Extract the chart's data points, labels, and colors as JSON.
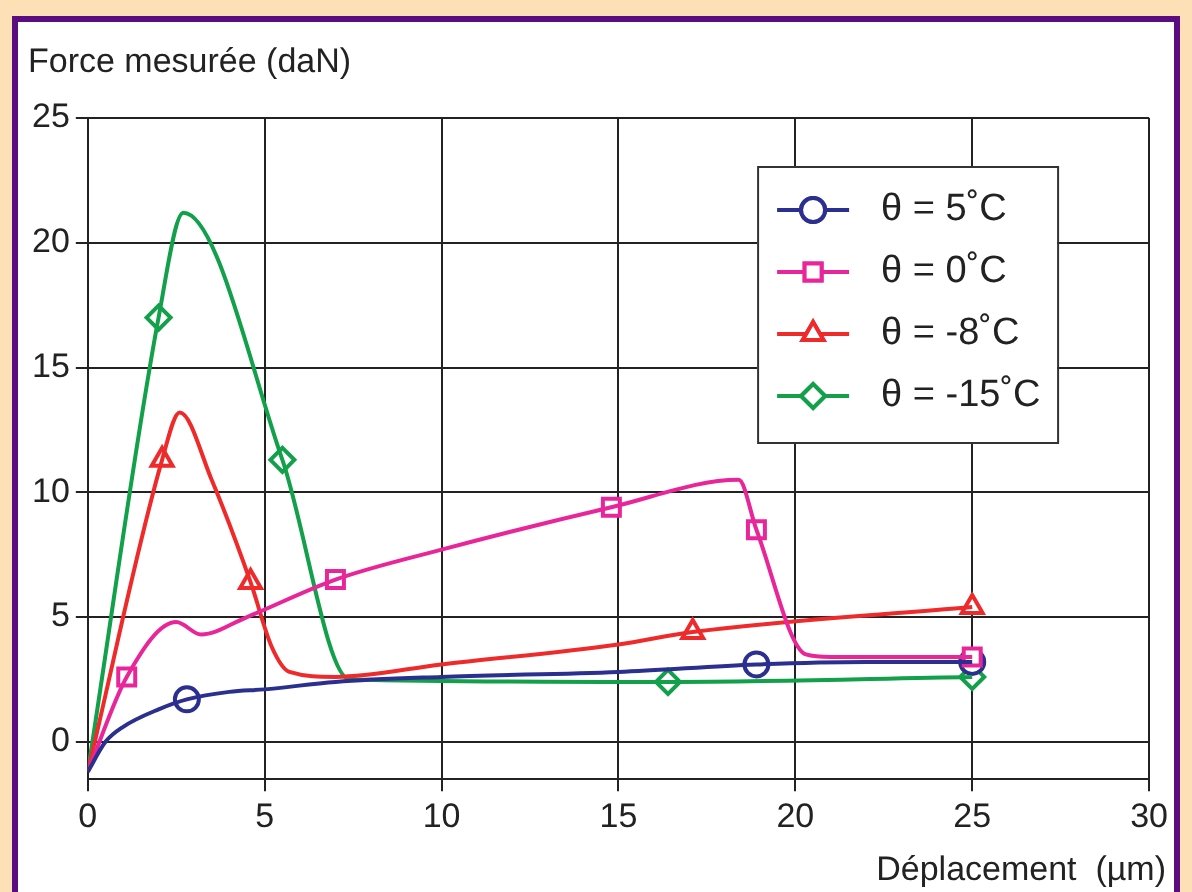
{
  "chart_data": {
    "type": "line",
    "ylabel": "Force mesurée (daN)",
    "xlabel": "Déplacement  (µm)",
    "xlim": [
      0,
      30
    ],
    "xticks": [
      0,
      5,
      10,
      15,
      20,
      25,
      30
    ],
    "ylim": [
      -1.5,
      25
    ],
    "yticks": [
      0,
      5,
      10,
      15,
      20,
      25
    ],
    "grid": true,
    "legend": "top right",
    "line_style": "solid",
    "series": [
      {
        "name": "θ = 5˚C",
        "color": "#2b2f8f",
        "x": [
          0,
          0.5,
          1,
          2,
          2.8,
          4,
          5,
          7,
          10,
          15,
          18.9,
          22,
          25
        ],
        "values": [
          -1.2,
          0,
          0.6,
          1.3,
          1.7,
          2.0,
          2.1,
          2.4,
          2.6,
          2.8,
          3.1,
          3.2,
          3.2
        ]
      },
      {
        "name": "θ = 0˚C",
        "color": "#e8269a",
        "x": [
          0,
          1.1,
          2.5,
          3.2,
          4.5,
          7,
          10,
          14.8,
          18.4,
          18.9,
          20.3,
          21,
          25
        ],
        "values": [
          -1.2,
          2.6,
          4.8,
          4.3,
          5.0,
          6.5,
          7.7,
          9.4,
          10.5,
          8.5,
          3.5,
          3.4,
          3.4
        ]
      },
      {
        "name": "θ = -8˚C",
        "color": "#ee2a2a",
        "x": [
          0,
          2.1,
          2.6,
          3.5,
          4.6,
          5.2,
          5.7,
          7,
          10,
          15,
          17.1,
          25
        ],
        "values": [
          -1.2,
          11.3,
          13.2,
          10.5,
          6.4,
          3.8,
          2.8,
          2.6,
          3.1,
          3.9,
          4.4,
          5.4
        ]
      },
      {
        "name": "θ = -15˚C",
        "color": "#12a04a",
        "x": [
          0,
          2.0,
          2.7,
          5.5,
          7.4,
          16.4,
          25
        ],
        "values": [
          -1.2,
          17.0,
          21.2,
          11.3,
          2.5,
          2.4,
          2.6
        ]
      },
      {
        "type": "scatter",
        "color": "#e8269a",
        "marker": "square",
        "x": [
          1.1,
          7,
          14.8,
          18.9,
          25
        ],
        "values": [
          2.6,
          6.5,
          9.4,
          8.5,
          3.4
        ]
      },
      {
        "type": "scatter",
        "color": "#2b2f8f",
        "marker": "circle",
        "x": [
          2.8,
          18.9,
          25
        ],
        "values": [
          1.7,
          3.1,
          3.2
        ]
      },
      {
        "type": "scatter",
        "color": "#ee2a2a",
        "marker": "triangle",
        "x": [
          2.1,
          4.6,
          17.1,
          25
        ],
        "values": [
          11.3,
          6.4,
          4.4,
          5.4
        ]
      },
      {
        "type": "scatter",
        "color": "#12a04a",
        "marker": "diamond",
        "x": [
          2.0,
          5.5,
          16.4,
          25
        ],
        "values": [
          17.0,
          11.3,
          2.4,
          2.6
        ]
      }
    ]
  }
}
